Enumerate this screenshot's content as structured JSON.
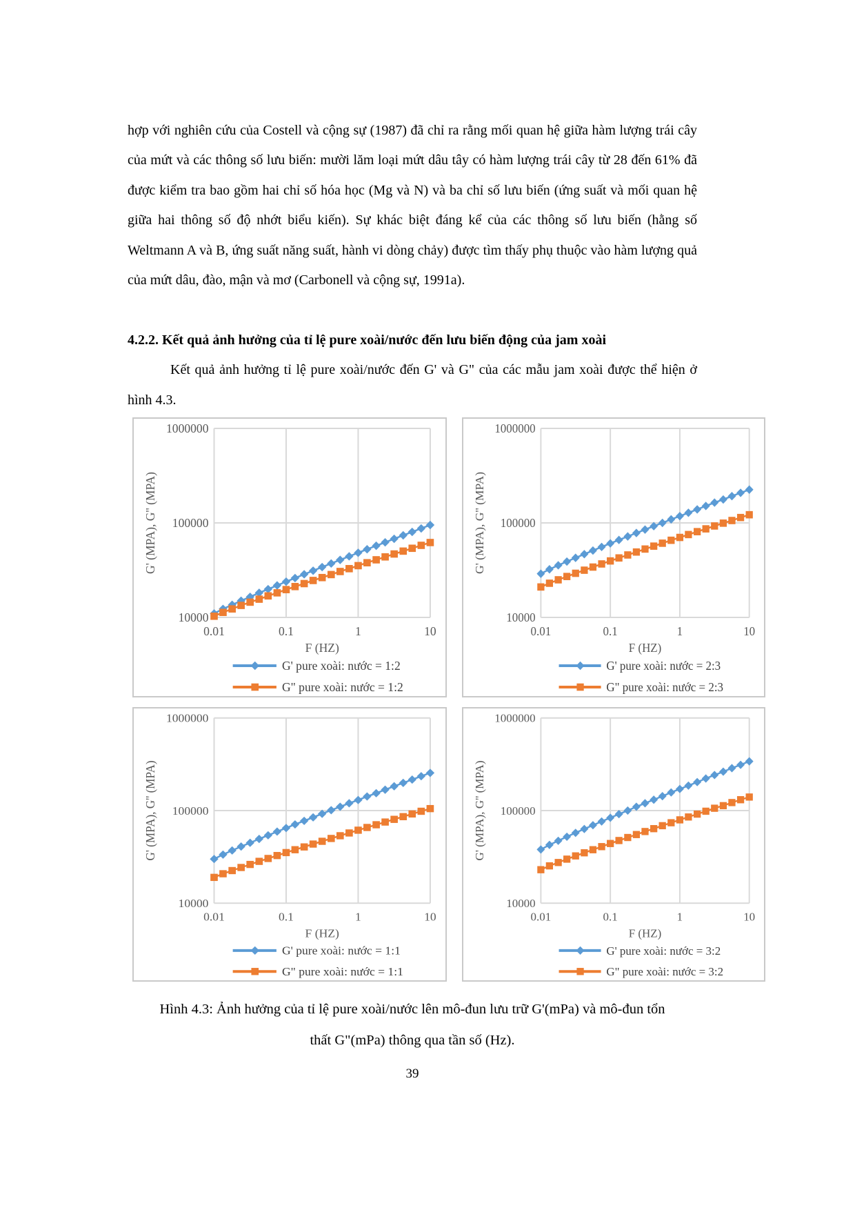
{
  "page": {
    "paragraph1": "hợp với nghiên cứu của Costell và cộng sự (1987) đã chỉ ra rằng mối quan hệ giữa hàm lượng trái cây của mứt và các thông số lưu biến: mười lăm loại mứt dâu tây có hàm lượng trái cây từ 28 đến 61% đã được kiểm tra bao gồm hai chỉ số hóa học (Mg và N) và ba chỉ số lưu biến (ứng suất và mối quan hệ giữa hai thông số độ nhớt biểu kiến). Sự khác biệt đáng kể của các thông số lưu biến (hằng số Weltmann A và B, ứng suất năng suất, hành vi dòng chảy) được tìm thấy phụ thuộc vào hàm lượng quả của mứt dâu, đào, mận và mơ (Carbonell và cộng sự, 1991a).",
    "heading": "4.2.2. Kết quả ảnh hưởng của tỉ lệ pure xoài/nước đến lưu biến động của jam xoài",
    "paragraph2": "Kết quả ảnh hưởng tỉ lệ pure xoài/nước đến G' và G\" của các mẫu jam xoài được thể hiện ở hình 4.3.",
    "caption_line1": "Hình 4.3: Ảnh hưởng của tỉ lệ pure xoài/nước lên mô-đun lưu trữ G'(mPa) và mô-đun tổn",
    "caption_line2": "thất G\"(mPa) thông qua tần số (Hz).",
    "page_number": "39"
  },
  "colors": {
    "g_prime_blue": "#5B9BD5",
    "g_double_prime_orange": "#ED7D31",
    "grid": "#D9D9D9",
    "axis_text": "#595959",
    "legend_text": "#404040",
    "box_border": "#C9C9C9"
  },
  "chart_data": [
    {
      "type": "line",
      "log_x": true,
      "log_y": true,
      "xlabel": "F (HZ)",
      "ylabel": "G' (MPA), G'' (MPA)",
      "x_ticks": [
        "0.01",
        "0.1",
        "1",
        "10"
      ],
      "y_ticks": [
        "10000",
        "100000",
        "1000000"
      ],
      "xlim": [
        0.01,
        10
      ],
      "ylim": [
        10000,
        1000000
      ],
      "x": [
        0.01,
        0.0133,
        0.0178,
        0.0237,
        0.0316,
        0.0422,
        0.0562,
        0.075,
        0.1,
        0.133,
        0.178,
        0.237,
        0.316,
        0.422,
        0.562,
        0.75,
        1,
        1.33,
        1.78,
        2.37,
        3.16,
        4.22,
        5.62,
        7.5,
        10
      ],
      "series": [
        {
          "name": "G' pure xoài: nước = 1:2",
          "marker": "diamond",
          "color": "#5B9BD5",
          "values": [
            11000,
            12300,
            13600,
            15000,
            16500,
            18200,
            19900,
            21800,
            23900,
            26100,
            28600,
            31200,
            34100,
            37200,
            40600,
            44300,
            48300,
            52600,
            57300,
            62300,
            67900,
            73900,
            80300,
            87400,
            95000
          ]
        },
        {
          "name": "G\" pure xoài: nước = 1:2",
          "marker": "square",
          "color": "#ED7D31",
          "values": [
            10300,
            11300,
            12300,
            13400,
            14500,
            15600,
            16900,
            18200,
            19700,
            21200,
            22800,
            24600,
            26400,
            28400,
            30600,
            32800,
            35300,
            37900,
            40700,
            43700,
            46900,
            50300,
            53900,
            57900,
            62000
          ]
        }
      ]
    },
    {
      "type": "line",
      "log_x": true,
      "log_y": true,
      "xlabel": "F (HZ)",
      "ylabel": "G' (MPA), G'' (MPA)",
      "x_ticks": [
        "0.01",
        "0.1",
        "1",
        "10"
      ],
      "y_ticks": [
        "10000",
        "100000",
        "1000000"
      ],
      "xlim": [
        0.01,
        10
      ],
      "ylim": [
        10000,
        1000000
      ],
      "x": [
        0.01,
        0.0133,
        0.0178,
        0.0237,
        0.0316,
        0.0422,
        0.0562,
        0.075,
        0.1,
        0.133,
        0.178,
        0.237,
        0.316,
        0.422,
        0.562,
        0.75,
        1,
        1.33,
        1.78,
        2.37,
        3.16,
        4.22,
        5.62,
        7.5,
        10
      ],
      "series": [
        {
          "name": "G' pure xoài: nước = 2:3",
          "marker": "diamond",
          "color": "#5B9BD5",
          "values": [
            29000,
            32300,
            35600,
            39000,
            42700,
            46700,
            51000,
            55700,
            60700,
            66000,
            71900,
            78200,
            85000,
            92400,
            100000,
            109000,
            118000,
            128000,
            139000,
            151000,
            164000,
            177000,
            192000,
            208000,
            225000
          ]
        },
        {
          "name": "G\" pure xoài: nước = 2:3",
          "marker": "square",
          "color": "#ED7D31",
          "values": [
            21000,
            23000,
            25000,
            27100,
            29300,
            31600,
            34100,
            36800,
            39600,
            42600,
            45800,
            49200,
            52900,
            56800,
            61000,
            65500,
            70200,
            75300,
            80800,
            86500,
            92800,
            99400,
            106000,
            114000,
            122000
          ]
        }
      ]
    },
    {
      "type": "line",
      "log_x": true,
      "log_y": true,
      "xlabel": "F (HZ)",
      "ylabel": "G' (MPA), G'' (MPA)",
      "x_ticks": [
        "0.01",
        "0.1",
        "1",
        "10"
      ],
      "y_ticks": [
        "10000",
        "100000",
        "1000000"
      ],
      "xlim": [
        0.01,
        10
      ],
      "ylim": [
        10000,
        1000000
      ],
      "x": [
        0.01,
        0.0133,
        0.0178,
        0.0237,
        0.0316,
        0.0422,
        0.0562,
        0.075,
        0.1,
        0.133,
        0.178,
        0.237,
        0.316,
        0.422,
        0.562,
        0.75,
        1,
        1.33,
        1.78,
        2.37,
        3.16,
        4.22,
        5.62,
        7.5,
        10
      ],
      "series": [
        {
          "name": "G' pure xoài: nước = 1:1",
          "marker": "diamond",
          "color": "#5B9BD5",
          "values": [
            30000,
            33500,
            37100,
            40900,
            44900,
            49400,
            54100,
            59300,
            64800,
            70900,
            77400,
            84500,
            92300,
            101000,
            110000,
            120000,
            130000,
            142000,
            154000,
            168000,
            183000,
            199000,
            216000,
            235000,
            255000
          ]
        },
        {
          "name": "G\" pure xoài: nước = 1:1",
          "marker": "square",
          "color": "#ED7D31",
          "values": [
            19000,
            20800,
            22500,
            24300,
            26200,
            28300,
            30400,
            32700,
            35200,
            37800,
            40500,
            43500,
            46600,
            50000,
            53500,
            57300,
            61400,
            65700,
            70300,
            75200,
            80400,
            86000,
            92000,
            98300,
            105000
          ]
        }
      ]
    },
    {
      "type": "line",
      "log_x": true,
      "log_y": true,
      "xlabel": "F (HZ)",
      "ylabel": "G' (MPA), G'' (MPA)",
      "x_ticks": [
        "0.01",
        "0.1",
        "1",
        "10"
      ],
      "y_ticks": [
        "10000",
        "100000",
        "1000000"
      ],
      "xlim": [
        0.01,
        10
      ],
      "ylim": [
        10000,
        1000000
      ],
      "x": [
        0.01,
        0.0133,
        0.0178,
        0.0237,
        0.0316,
        0.0422,
        0.0562,
        0.075,
        0.1,
        0.133,
        0.178,
        0.237,
        0.316,
        0.422,
        0.562,
        0.75,
        1,
        1.33,
        1.78,
        2.37,
        3.16,
        4.22,
        5.62,
        7.5,
        10
      ],
      "series": [
        {
          "name": "G' pure xoài: nước = 3:2",
          "marker": "diamond",
          "color": "#5B9BD5",
          "values": [
            38000,
            42600,
            47200,
            52200,
            57500,
            63300,
            69500,
            76300,
            83600,
            91600,
            100000,
            110000,
            120000,
            131000,
            143000,
            157000,
            171000,
            186000,
            203000,
            222000,
            242000,
            263000,
            287000,
            312000,
            340000
          ]
        },
        {
          "name": "G\" pure xoài: nước = 3:2",
          "marker": "square",
          "color": "#ED7D31",
          "values": [
            23000,
            25300,
            27500,
            29900,
            32400,
            35000,
            37800,
            40800,
            44100,
            47500,
            51200,
            55100,
            59400,
            63800,
            68700,
            73900,
            79400,
            85300,
            91600,
            98400,
            106000,
            113000,
            122000,
            131000,
            140000
          ]
        }
      ]
    }
  ]
}
